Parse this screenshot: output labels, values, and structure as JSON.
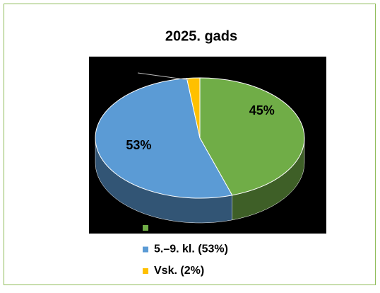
{
  "chart_data": {
    "type": "pie3d",
    "title": "2025. gads",
    "categories": [
      null,
      "5.–9. kl. (53%)",
      "Vsk. (2%)"
    ],
    "values": [
      45,
      53,
      2
    ],
    "value_labels": [
      "45%",
      "53%",
      null
    ],
    "colors": [
      "#70ad47",
      "#5b9bd5",
      "#ffc000"
    ],
    "legend": "bottom"
  }
}
